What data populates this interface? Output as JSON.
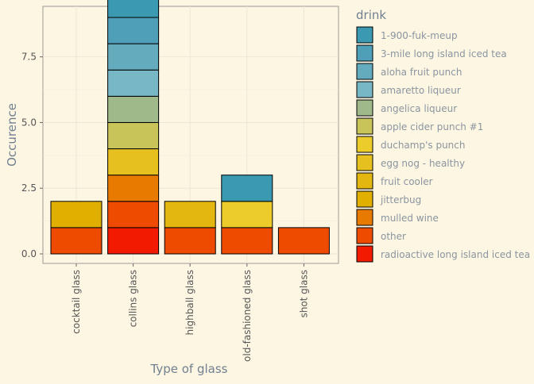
{
  "chart_data": {
    "type": "bar",
    "stacked": true,
    "xlabel": "Type of glass",
    "ylabel": "Occurence",
    "ylim": [
      0,
      9.4
    ],
    "yticks": [
      0,
      2.5,
      5,
      7.5
    ],
    "ytick_labels": [
      "0.0",
      "2.5",
      "5.0",
      "7.5"
    ],
    "grid": true,
    "legend_position": "right",
    "legend_title": "drink",
    "categories": [
      "cocktail glass",
      "collins glass",
      "highball glass",
      "old-fashioned glass",
      "shot glass"
    ],
    "series": [
      {
        "name": "radioactive long island iced tea",
        "color": "#f21a00",
        "values": [
          0,
          1,
          0,
          0,
          0
        ]
      },
      {
        "name": "other",
        "color": "#ee4b00",
        "values": [
          1,
          1,
          1,
          1,
          1
        ]
      },
      {
        "name": "mulled wine",
        "color": "#e87a00",
        "values": [
          0,
          1,
          0,
          0,
          0
        ]
      },
      {
        "name": "jitterbug",
        "color": "#e1af00",
        "values": [
          1,
          0,
          0,
          0,
          0
        ]
      },
      {
        "name": "fruit cooler",
        "color": "#e4b710",
        "values": [
          0,
          0,
          1,
          0,
          0
        ]
      },
      {
        "name": "egg nog - healthy",
        "color": "#e6c01f",
        "values": [
          0,
          1,
          0,
          0,
          0
        ]
      },
      {
        "name": "duchamp's punch",
        "color": "#ebcc2a",
        "values": [
          0,
          0,
          0,
          1,
          0
        ]
      },
      {
        "name": "apple cider punch #1",
        "color": "#c8c45a",
        "values": [
          0,
          1,
          0,
          0,
          0
        ]
      },
      {
        "name": "angelica liqueur",
        "color": "#a0b98a",
        "values": [
          0,
          1,
          0,
          0,
          0
        ]
      },
      {
        "name": "amaretto liqueur",
        "color": "#78b7c5",
        "values": [
          0,
          1,
          0,
          0,
          0
        ]
      },
      {
        "name": "aloha fruit punch",
        "color": "#65abbe",
        "values": [
          0,
          1,
          0,
          0,
          0
        ]
      },
      {
        "name": "3-mile long island iced tea",
        "color": "#4f9fb8",
        "values": [
          0,
          1,
          0,
          0,
          0
        ]
      },
      {
        "name": "1-900-fuk-meup",
        "color": "#3b9ab2",
        "values": [
          0,
          1,
          0,
          1,
          0
        ]
      }
    ]
  }
}
